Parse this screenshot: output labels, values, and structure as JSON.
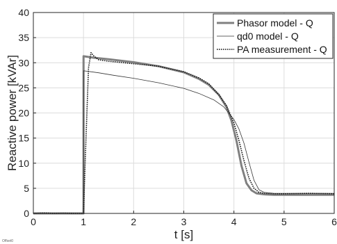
{
  "chart_data": {
    "type": "line",
    "xlabel": "t [s]",
    "ylabel": "Reactive power [kVAr]",
    "xlim": [
      0,
      6
    ],
    "ylim": [
      0,
      40
    ],
    "xticks": [
      "0",
      "1",
      "2",
      "3",
      "4",
      "5",
      "6"
    ],
    "yticks": [
      "0",
      "5",
      "10",
      "15",
      "20",
      "25",
      "30",
      "35",
      "40"
    ],
    "grid": true,
    "legend_position": "top-right",
    "corner_mark": "Offset0",
    "series": [
      {
        "name": "Phasor model - Q",
        "style": "thick-solid",
        "color": "#808080",
        "x": [
          0,
          1.0,
          1.001,
          1.2,
          1.5,
          2.0,
          2.5,
          3.0,
          3.3,
          3.5,
          3.7,
          3.85,
          3.95,
          4.05,
          4.15,
          4.25,
          4.35,
          4.45,
          4.6,
          4.8,
          5.0,
          5.5,
          6.0
        ],
        "y": [
          0,
          0,
          31.3,
          31.0,
          30.7,
          30.1,
          29.3,
          28.1,
          26.8,
          25.6,
          23.6,
          21.2,
          18.5,
          14.5,
          9.5,
          6.0,
          4.6,
          4.0,
          3.8,
          3.7,
          3.7,
          3.7,
          3.7
        ]
      },
      {
        "name": "qd0 model - Q",
        "style": "thin-solid",
        "color": "#333333",
        "x": [
          0,
          1.0,
          1.001,
          1.3,
          1.6,
          2.0,
          2.5,
          3.0,
          3.3,
          3.6,
          3.8,
          4.0,
          4.1,
          4.2,
          4.3,
          4.4,
          4.5,
          4.6,
          4.8,
          5.0,
          5.5,
          6.0
        ],
        "y": [
          0,
          0,
          28.4,
          28.0,
          27.5,
          26.9,
          26.0,
          24.9,
          23.9,
          22.6,
          21.2,
          18.7,
          16.8,
          14.0,
          10.2,
          6.6,
          4.7,
          4.2,
          4.0,
          4.0,
          4.0,
          4.0
        ]
      },
      {
        "name": "PA measurement - Q",
        "style": "dotted",
        "color": "#111111",
        "x": [
          0,
          0.2,
          0.4,
          0.6,
          0.8,
          0.98,
          1.0,
          1.05,
          1.1,
          1.15,
          1.2,
          1.3,
          1.5,
          2.0,
          2.5,
          3.0,
          3.3,
          3.5,
          3.7,
          3.85,
          4.0,
          4.1,
          4.2,
          4.3,
          4.4,
          4.5,
          4.6,
          4.8,
          5.0,
          5.5,
          6.0
        ],
        "y": [
          0,
          0.1,
          0,
          0.05,
          0,
          0,
          0,
          15.0,
          29.0,
          32.0,
          31.4,
          30.6,
          30.3,
          29.8,
          29.3,
          28.2,
          27.0,
          25.8,
          23.6,
          21.5,
          18.0,
          14.5,
          10.5,
          7.0,
          5.0,
          4.2,
          4.0,
          3.9,
          3.9,
          4.0,
          3.9
        ]
      }
    ]
  }
}
